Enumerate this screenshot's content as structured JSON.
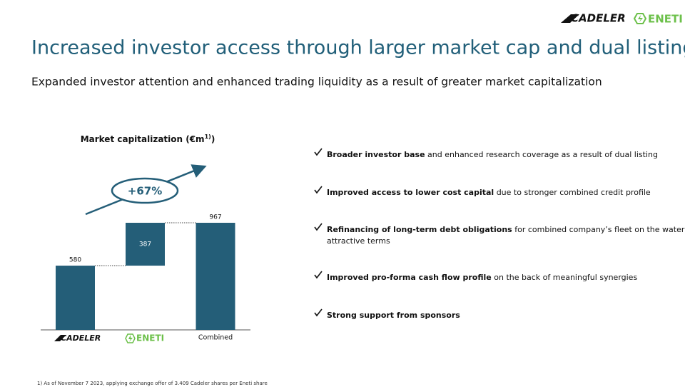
{
  "header": {
    "logos": [
      "CADELER",
      "ENETI"
    ],
    "title": "Increased investor access through larger market cap and dual listing",
    "subtitle": "Expanded investor attention and enhanced trading liquidity as a result of greater market capitalization"
  },
  "chart_data": {
    "type": "waterfall",
    "title": [
      "Market capitalization (€m",
      "1)",
      ")"
    ],
    "categories": [
      "CADELER",
      "ENETI",
      "Combined"
    ],
    "values": [
      580,
      387,
      967
    ],
    "color": "#245e78",
    "annotation": "+67%"
  },
  "bullets": [
    {
      "bold": "Broader investor base",
      "text": " and enhanced research coverage as a result of dual listing"
    },
    {
      "bold": "Improved access to lower cost capital",
      "text": " due to stronger combined credit profile"
    },
    {
      "bold": "Refinancing of long-term debt obligations",
      "text": " for combined company’s fleet on the water at",
      "text2": "attractive terms"
    },
    {
      "bold": "Improved pro-forma cash flow profile",
      "text": " on the back of meaningful synergies"
    },
    {
      "bold": "Strong support from sponsors"
    }
  ],
  "footnote": "1) As of November 7 2023, applying exchange offer of 3.409 Cadeler shares per Eneti share"
}
